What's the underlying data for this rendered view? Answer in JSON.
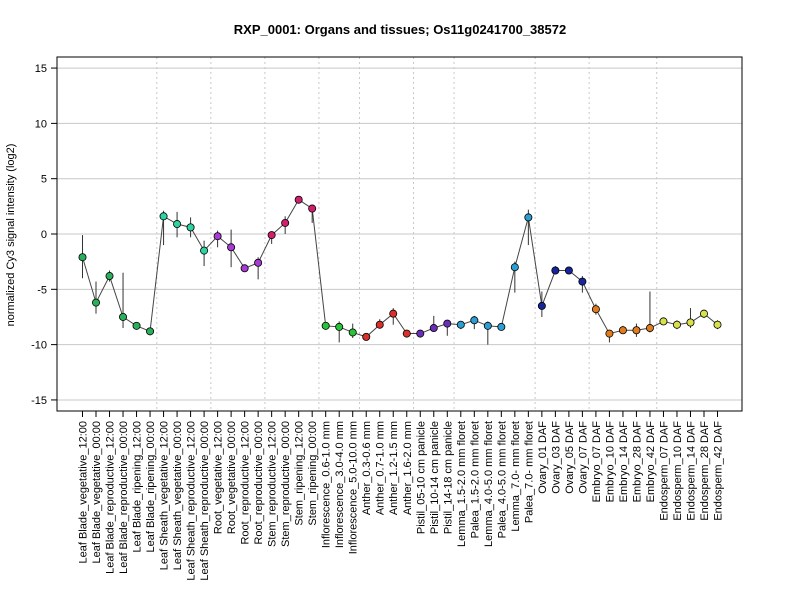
{
  "chart_data": {
    "type": "line",
    "title": "RXP_0001: Organs and tissues; Os11g0241700_38572",
    "ylabel": "normalized Cy3 signal intensity (log2)",
    "xlabel": "",
    "ylim": [
      -16,
      16
    ],
    "yticks": [
      -15,
      -10,
      -5,
      0,
      5,
      10,
      15
    ],
    "grid": true,
    "categories": [
      "Leaf Blade_vegetative_12:00",
      "Leaf Blade_vegetative_00:00",
      "Leaf Blade_reproductive_12:00",
      "Leaf Blade_reproductive_00:00",
      "Leaf Blade_ripening_12:00",
      "Leaf Blade_ripening_00:00",
      "Leaf Sheath_vegetative_12:00",
      "Leaf Sheath_vegetative_00:00",
      "Leaf Sheath_reproductive_12:00",
      "Leaf Sheath_reproductive_00:00",
      "Root_vegetative_12:00",
      "Root_vegetative_00:00",
      "Root_reproductive_12:00",
      "Root_reproductive_00:00",
      "Stem_reproductive_12:00",
      "Stem_reproductive_00:00",
      "Stem_ripening_12:00",
      "Stem_ripening_00:00",
      "Inflorescence_0.6-1.0 mm",
      "Inflorescence_3.0-4.0 mm",
      "Inflorescence_5.0-10.0 mm",
      "Anther_0.3-0.6 mm",
      "Anther_0.7-1.0 mm",
      "Anther_1.2-1.5 mm",
      "Anther_1.6-2.0 mm",
      "Pistil_05-10 cm panicle",
      "Pistil_10-14 cm panicle",
      "Pistil_14-18 cm panicle",
      "Lemma_1.5-2.0 mm floret",
      "Palea_1.5-2.0 mm floret",
      "Lemma_4.0-5.0 mm floret",
      "Palea_4.0-5.0 mm floret",
      "Lemma_7.0- mm floret",
      "Palea_7.0- mm floret",
      "Ovary_01 DAF",
      "Ovary_03 DAF",
      "Ovary_05 DAF",
      "Ovary_07 DAF",
      "Embryo_07 DAF",
      "Embryo_10 DAF",
      "Embryo_14 DAF",
      "Embryo_28 DAF",
      "Embryo_42 DAF",
      "Endosperm_07 DAF",
      "Endosperm_10 DAF",
      "Endosperm_14 DAF",
      "Endosperm_28 DAF",
      "Endosperm_42 DAF"
    ],
    "series": [
      {
        "values": [
          -2.1,
          -6.2,
          -3.8,
          -7.5,
          -8.3,
          -8.8,
          1.6,
          0.9,
          0.6,
          -1.5,
          -0.2,
          -1.2,
          -3.1,
          -2.6,
          -0.1,
          1.0,
          3.1,
          2.3,
          -8.3,
          -8.4,
          -8.9,
          -9.3,
          -8.2,
          -7.2,
          -9.0,
          -9.0,
          -8.5,
          -8.1,
          -8.2,
          -7.8,
          -8.3,
          -8.4,
          -3.0,
          1.5,
          -6.5,
          -3.3,
          -3.3,
          -4.3,
          -6.8,
          -9.0,
          -8.7,
          -8.7,
          -8.5,
          -7.9,
          -8.2,
          -8.0,
          -7.2,
          -8.2
        ],
        "err_low": [
          -4.0,
          -7.2,
          -4.3,
          -8.5,
          -8.6,
          -9.0,
          -1.0,
          -0.3,
          -0.3,
          -2.9,
          -1.2,
          -3.0,
          -3.4,
          -4.1,
          -0.9,
          0.0,
          2.9,
          1.0,
          -8.5,
          -9.8,
          -9.4,
          -9.6,
          -8.5,
          -8.2,
          -9.3,
          -9.2,
          -8.8,
          -9.2,
          -8.6,
          -8.6,
          -10.0,
          -8.7,
          -5.3,
          -1.0,
          -7.5,
          -3.5,
          -3.5,
          -5.3,
          -7.3,
          -9.8,
          -9.0,
          -9.3,
          -8.9,
          -8.2,
          -8.6,
          -8.5,
          -7.6,
          -8.6
        ],
        "err_high": [
          -0.1,
          -4.3,
          -3.3,
          -3.5,
          -8.0,
          -8.6,
          2.1,
          2.0,
          1.5,
          -0.6,
          0.3,
          0.4,
          -2.9,
          -2.1,
          0.2,
          1.6,
          3.2,
          2.5,
          -8.1,
          -7.9,
          -8.1,
          -9.0,
          -7.7,
          -6.7,
          -8.7,
          -8.8,
          -7.4,
          -7.9,
          -7.9,
          -7.4,
          -7.9,
          -8.1,
          -2.5,
          2.2,
          -5.2,
          -2.9,
          -3.1,
          -3.8,
          -6.3,
          -8.7,
          -8.3,
          -8.1,
          -5.2,
          -7.6,
          -7.8,
          -6.7,
          -6.9,
          -7.8
        ]
      }
    ],
    "colors": [
      "#29b05a",
      "#29b05a",
      "#29b05a",
      "#29b05a",
      "#29b05a",
      "#29b05a",
      "#2dd4a3",
      "#2dd4a3",
      "#2dd4a3",
      "#2dd4a3",
      "#a83ad6",
      "#a83ad6",
      "#a83ad6",
      "#a83ad6",
      "#d11f6e",
      "#d11f6e",
      "#d11f6e",
      "#d11f6e",
      "#27c43a",
      "#27c43a",
      "#27c43a",
      "#d9302b",
      "#d9302b",
      "#d9302b",
      "#d9302b",
      "#6a2fb8",
      "#6a2fb8",
      "#6a2fb8",
      "#2b9fd2",
      "#2b9fd2",
      "#2b9fd2",
      "#2b9fd2",
      "#2b9fd2",
      "#2b9fd2",
      "#15259c",
      "#15259c",
      "#15259c",
      "#15259c",
      "#e07c1e",
      "#e07c1e",
      "#e07c1e",
      "#e07c1e",
      "#e07c1e",
      "#d8e04a",
      "#d8e04a",
      "#d8e04a",
      "#d8e04a",
      "#d8e04a"
    ],
    "group_dividers_after": [
      5,
      9,
      13,
      17,
      20,
      24,
      27,
      33,
      37,
      42
    ]
  }
}
